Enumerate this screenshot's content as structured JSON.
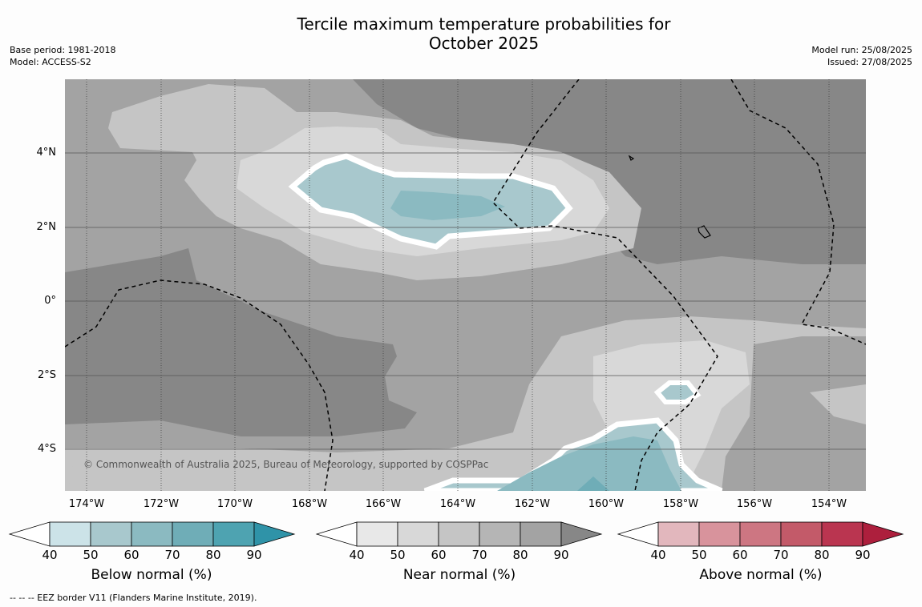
{
  "header": {
    "title_line1": "Tercile maximum temperature probabilities for",
    "title_line2": "October 2025",
    "base_period": "Base period: 1981-2018",
    "model": "Model: ACCESS-S2",
    "model_run": "Model run: 25/08/2025",
    "issued": "Issued: 27/08/2025"
  },
  "map": {
    "lat_labels": [
      "4°N",
      "2°N",
      "0°",
      "2°S",
      "4°S"
    ],
    "lon_labels": [
      "174°W",
      "172°W",
      "170°W",
      "168°W",
      "166°W",
      "164°W",
      "162°W",
      "160°W",
      "158°W",
      "156°W",
      "154°W"
    ],
    "copyright": "© Commonwealth of Australia 2025, Bureau of Meteorology, supported by COSPPac",
    "region_colors": {
      "near_dark": "#878787",
      "near_mid": "#a3a3a3",
      "near_light": "#c5c5c5",
      "near_lighter": "#d8d8d8",
      "below_50": "#a8c8cd",
      "below_60": "#8bbac1",
      "below_70": "#6fadb7"
    }
  },
  "legend": {
    "ticks": [
      "40",
      "50",
      "60",
      "70",
      "80",
      "90"
    ],
    "bars": [
      {
        "label": "Below normal (%)",
        "colors": [
          "#cce3e8",
          "#a8c8cd",
          "#8bbac1",
          "#6fadb7",
          "#4ea3b1",
          "#2f93a8"
        ]
      },
      {
        "label": "Near normal (%)",
        "colors": [
          "#e8e8e8",
          "#d8d8d8",
          "#c5c5c5",
          "#b5b5b5",
          "#a3a3a3",
          "#878787"
        ]
      },
      {
        "label": "Above normal (%)",
        "colors": [
          "#e2b7bd",
          "#d8939c",
          "#cd7682",
          "#c35a69",
          "#ba3550",
          "#ad1f3d"
        ]
      }
    ]
  },
  "footnote": "--  --  -- EEZ border V11 (Flanders Marine Institute, 2019)."
}
